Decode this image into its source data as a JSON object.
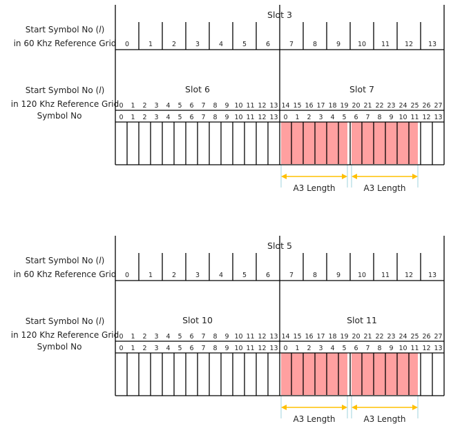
{
  "row_labels": {
    "start_symbol_60": [
      "Start Symbol No (",
      "l",
      ")"
    ],
    "ref_grid_60": "in 60 Khz Reference Grid",
    "start_symbol_120": [
      "Start Symbol No (",
      "l",
      ")"
    ],
    "ref_grid_120": "in 120 Khz Reference Grid",
    "symbol_no": "Symbol No"
  },
  "panels": [
    {
      "slot_60": "Slot 3",
      "slot_120_left": "Slot 6",
      "slot_120_right": "Slot 7",
      "symbols_60": [
        "0",
        "1",
        "2",
        "3",
        "4",
        "5",
        "6",
        "7",
        "8",
        "9",
        "10",
        "11",
        "12",
        "13"
      ],
      "symbols_120": [
        "0",
        "1",
        "2",
        "3",
        "4",
        "5",
        "6",
        "7",
        "8",
        "9",
        "10",
        "11",
        "12",
        "13",
        "14",
        "15",
        "16",
        "17",
        "18",
        "19",
        "20",
        "21",
        "22",
        "23",
        "24",
        "25",
        "26",
        "27"
      ],
      "symbol_no": [
        "0",
        "1",
        "2",
        "3",
        "4",
        "5",
        "6",
        "7",
        "8",
        "9",
        "10",
        "11",
        "12",
        "13",
        "0",
        "1",
        "2",
        "3",
        "4",
        "5",
        "6",
        "7",
        "8",
        "9",
        "10",
        "11",
        "12",
        "13"
      ],
      "highlights": [
        {
          "start": 14,
          "end": 19,
          "label": "A3 Length"
        },
        {
          "start": 20,
          "end": 25,
          "label": "A3 Length"
        }
      ]
    },
    {
      "slot_60": "Slot 5",
      "slot_120_left": "Slot 10",
      "slot_120_right": "Slot 11",
      "symbols_60": [
        "0",
        "1",
        "2",
        "3",
        "4",
        "5",
        "6",
        "7",
        "8",
        "9",
        "10",
        "11",
        "12",
        "13"
      ],
      "symbols_120": [
        "0",
        "1",
        "2",
        "3",
        "4",
        "5",
        "6",
        "7",
        "8",
        "9",
        "10",
        "11",
        "12",
        "13",
        "14",
        "15",
        "16",
        "17",
        "18",
        "19",
        "20",
        "21",
        "22",
        "23",
        "24",
        "25",
        "26",
        "27"
      ],
      "symbol_no": [
        "0",
        "1",
        "2",
        "3",
        "4",
        "5",
        "6",
        "7",
        "8",
        "9",
        "10",
        "11",
        "12",
        "13",
        "0",
        "1",
        "2",
        "3",
        "4",
        "5",
        "6",
        "7",
        "8",
        "9",
        "10",
        "11",
        "12",
        "13"
      ],
      "highlights": [
        {
          "start": 14,
          "end": 19,
          "label": "A3 Length"
        },
        {
          "start": 20,
          "end": 25,
          "label": "A3 Length"
        }
      ]
    }
  ],
  "colors": {
    "highlight": "#ffa0a0",
    "arrow": "#ffc000",
    "guide": "#9fd3dc",
    "line": "#000000"
  }
}
